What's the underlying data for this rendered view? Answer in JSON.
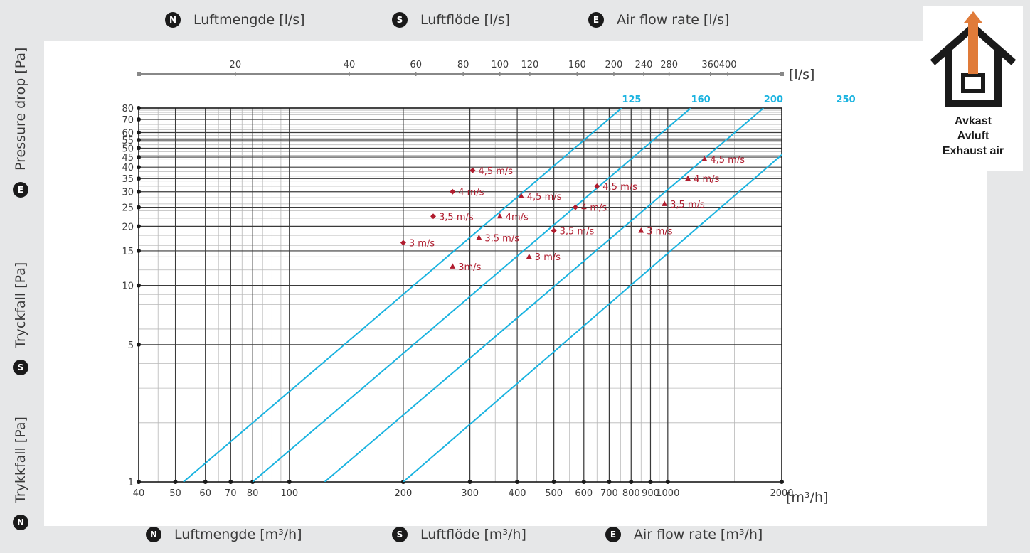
{
  "header_top": {
    "items": [
      {
        "badge": "N",
        "label": "Luftmengde [l/s]"
      },
      {
        "badge": "S",
        "label": "Luftflöde [l/s]"
      },
      {
        "badge": "E",
        "label": "Air flow rate [l/s]"
      }
    ]
  },
  "header_bottom": {
    "items": [
      {
        "badge": "N",
        "label": "Luftmengde [m³/h]"
      },
      {
        "badge": "S",
        "label": "Luftflöde [m³/h]"
      },
      {
        "badge": "E",
        "label": "Air flow rate [m³/h]"
      }
    ]
  },
  "y_labels": [
    {
      "badge": "N",
      "label": "Trykkfall [Pa]"
    },
    {
      "badge": "S",
      "label": "Tryckfall [Pa]"
    },
    {
      "badge": "E",
      "label": "Pressure drop [Pa]"
    }
  ],
  "icon": {
    "name": "exhaust-air-house-icon",
    "lines": [
      "Avkast",
      "Avluft",
      "Exhaust air"
    ],
    "arrow_color": "#e07b39"
  },
  "colors": {
    "duct_line": "#1ab3e0",
    "marker": "#b01c2e",
    "grid_major": "#3a3a3a",
    "grid_minor": "#b8b8b8"
  },
  "chart_data": {
    "type": "line",
    "x_scale": "log",
    "y_scale": "log",
    "xlim": [
      40,
      2000
    ],
    "ylim": [
      1,
      80
    ],
    "x_unit": "[m³/h]",
    "x_ticks": [
      40,
      50,
      60,
      70,
      80,
      100,
      200,
      300,
      400,
      500,
      600,
      700,
      800,
      900,
      1000,
      2000
    ],
    "y_ticks": [
      1,
      5,
      10,
      15,
      20,
      25,
      30,
      35,
      40,
      45,
      50,
      55,
      60,
      70,
      80
    ],
    "secondary_x": {
      "unit": "[l/s]",
      "ticks": [
        20,
        40,
        60,
        80,
        100,
        120,
        160,
        200,
        240,
        280,
        360,
        400
      ]
    },
    "series": [
      {
        "name": "125",
        "x": [
          52.5,
          755
        ],
        "y": [
          1,
          80
        ]
      },
      {
        "name": "160",
        "x": [
          80,
          1150
        ],
        "y": [
          1,
          80
        ]
      },
      {
        "name": "200",
        "x": [
          124,
          1790
        ],
        "y": [
          1,
          80
        ]
      },
      {
        "name": "250",
        "x": [
          200,
          2780
        ],
        "y": [
          1,
          80
        ]
      }
    ],
    "markers": [
      {
        "series": "125",
        "shape": "diamond",
        "label": "3 m/s",
        "x": 200,
        "y": 16.5
      },
      {
        "series": "125",
        "shape": "diamond",
        "label": "3,5 m/s",
        "x": 240,
        "y": 22.5
      },
      {
        "series": "125",
        "shape": "diamond",
        "label": "4 m/s",
        "x": 270,
        "y": 30
      },
      {
        "series": "125",
        "shape": "diamond",
        "label": "4,5 m/s",
        "x": 305,
        "y": 38.5
      },
      {
        "series": "160",
        "shape": "triangle",
        "label": "3m/s",
        "x": 270,
        "y": 12.5
      },
      {
        "series": "160",
        "shape": "triangle",
        "label": "3,5 m/s",
        "x": 317,
        "y": 17.5
      },
      {
        "series": "160",
        "shape": "triangle",
        "label": "4m/s",
        "x": 360,
        "y": 22.5
      },
      {
        "series": "160",
        "shape": "triangle",
        "label": "4,5 m/s",
        "x": 410,
        "y": 28.5
      },
      {
        "series": "200",
        "shape": "triangle",
        "label": "3 m/s",
        "x": 430,
        "y": 14
      },
      {
        "series": "200",
        "shape": "diamond",
        "label": "3,5 m/s",
        "x": 500,
        "y": 19
      },
      {
        "series": "200",
        "shape": "diamond",
        "label": "4 m/s",
        "x": 570,
        "y": 25
      },
      {
        "series": "200",
        "shape": "diamond",
        "label": "4,5 m/s",
        "x": 650,
        "y": 32
      },
      {
        "series": "250",
        "shape": "triangle",
        "label": "3 m/s",
        "x": 850,
        "y": 19
      },
      {
        "series": "250",
        "shape": "triangle",
        "label": "3,5 m/s",
        "x": 980,
        "y": 26
      },
      {
        "series": "250",
        "shape": "triangle",
        "label": "4 m/s",
        "x": 1130,
        "y": 35
      },
      {
        "series": "250",
        "shape": "triangle",
        "label": "4,5 m/s",
        "x": 1250,
        "y": 44
      }
    ]
  }
}
